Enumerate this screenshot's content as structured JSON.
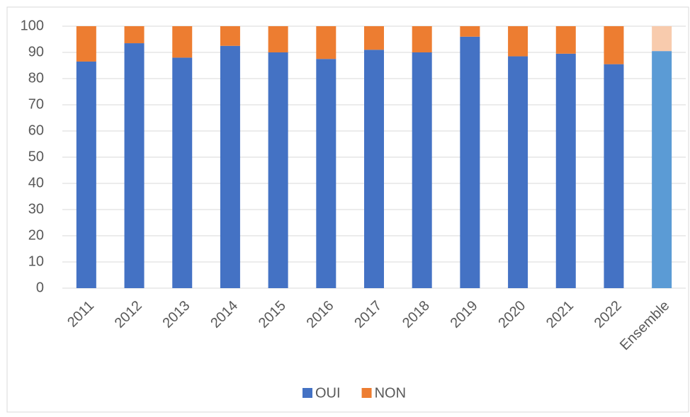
{
  "chart_data": {
    "type": "stacked_bar",
    "categories": [
      "2011",
      "2012",
      "2013",
      "2014",
      "2015",
      "2016",
      "2017",
      "2018",
      "2019",
      "2020",
      "2021",
      "2022",
      "Ensemble"
    ],
    "series": [
      {
        "name": "OUI",
        "color": "#4472c4",
        "colors": [
          "#4472c4",
          "#4472c4",
          "#4472c4",
          "#4472c4",
          "#4472c4",
          "#4472c4",
          "#4472c4",
          "#4472c4",
          "#4472c4",
          "#4472c4",
          "#4472c4",
          "#4472c4",
          "#5b9bd5"
        ],
        "values": [
          86.5,
          93.5,
          88,
          92.5,
          90,
          87.5,
          91,
          90,
          96,
          88.5,
          89.5,
          85.5,
          90.5
        ]
      },
      {
        "name": "NON",
        "color": "#ed7d31",
        "colors": [
          "#ed7d31",
          "#ed7d31",
          "#ed7d31",
          "#ed7d31",
          "#ed7d31",
          "#ed7d31",
          "#ed7d31",
          "#ed7d31",
          "#ed7d31",
          "#ed7d31",
          "#ed7d31",
          "#ed7d31",
          "#f8cbad"
        ],
        "values": [
          13.5,
          6.5,
          12,
          7.5,
          10,
          12.5,
          9,
          10,
          4,
          11.5,
          10.5,
          14.5,
          9.5
        ]
      }
    ],
    "ylim": [
      0,
      100
    ],
    "yticks": [
      0,
      10,
      20,
      30,
      40,
      50,
      60,
      70,
      80,
      90,
      100
    ],
    "grid": true,
    "legend": "bottom"
  }
}
